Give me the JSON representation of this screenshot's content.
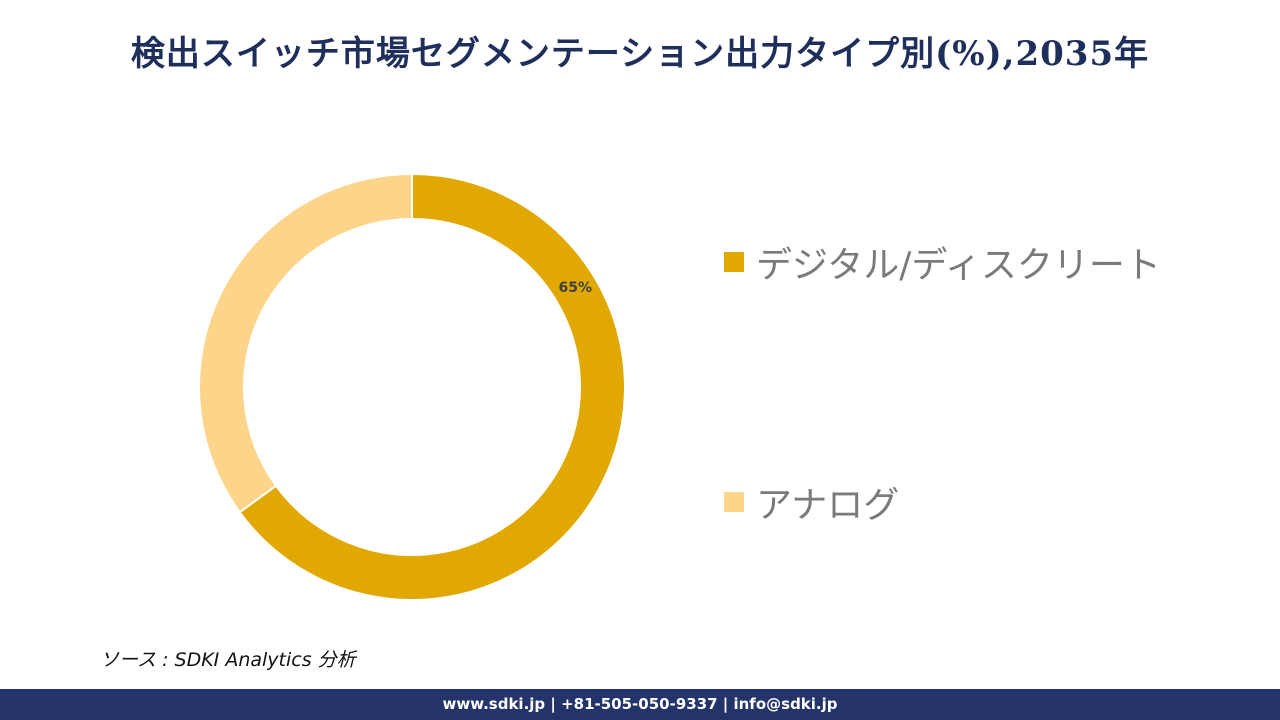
{
  "header": {
    "title": "検出スイッチ市場セグメンテーション出力タイプ別(%),2035年"
  },
  "chart_data": {
    "type": "pie",
    "style": "donut",
    "categories": [
      "デジタル/ディスクリート",
      "アナログ"
    ],
    "values": [
      65,
      35
    ],
    "colors": [
      "#e0a800",
      "#fdd58a"
    ],
    "data_labels": [
      "65%",
      ""
    ],
    "legend_position": "right"
  },
  "footer": {
    "source": "ソース : SDKI Analytics 分析",
    "contact": "www.sdki.jp | +81-505-050-9337 | info@sdki.jp"
  }
}
